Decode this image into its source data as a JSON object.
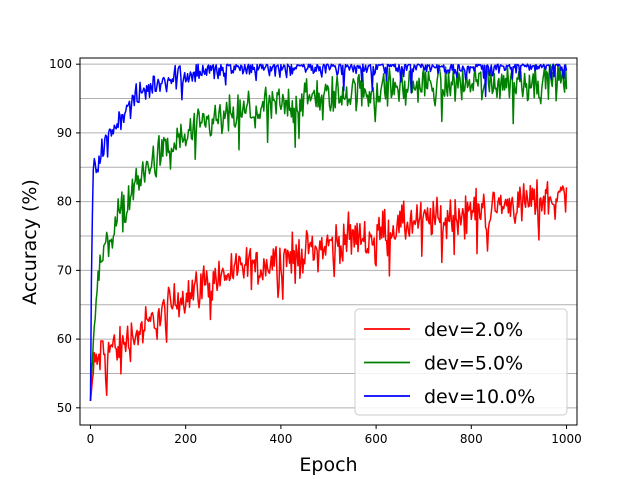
{
  "chart_data": {
    "type": "line",
    "title": "",
    "xlabel": "Epoch",
    "ylabel": "Accuracy (%)",
    "xlim": [
      -22,
      1022
    ],
    "ylim": [
      47.5,
      100.9
    ],
    "xticks": [
      0,
      200,
      400,
      600,
      800,
      1000
    ],
    "yticks": [
      50,
      60,
      70,
      80,
      90,
      100
    ],
    "ygrid": [
      50,
      55,
      60,
      65,
      70,
      75,
      80,
      85,
      90,
      95,
      100
    ],
    "grid": "horizontal",
    "legend_position": "lower-right",
    "series": [
      {
        "name": "dev=2.0%",
        "color": "#ff0000",
        "x": [
          0,
          5,
          10,
          20,
          30,
          50,
          75,
          100,
          125,
          150,
          175,
          200,
          250,
          300,
          350,
          400,
          450,
          500,
          550,
          600,
          650,
          700,
          750,
          800,
          850,
          900,
          950,
          1000
        ],
        "y": [
          51,
          54.5,
          56.5,
          57.5,
          58.3,
          58.9,
          59.8,
          60.9,
          62.2,
          63.6,
          65.3,
          66.6,
          68.4,
          69.9,
          70.7,
          71.7,
          72.6,
          73.7,
          74.7,
          75.5,
          76.4,
          77.2,
          77.9,
          78.7,
          79.2,
          79.7,
          80.3,
          80.8
        ],
        "noise": 1.5
      },
      {
        "name": "dev=5.0%",
        "color": "#008000",
        "x": [
          0,
          5,
          10,
          15,
          20,
          30,
          50,
          75,
          100,
          125,
          150,
          200,
          250,
          300,
          350,
          400,
          450,
          500,
          550,
          600,
          650,
          700,
          750,
          800,
          850,
          900,
          950,
          1000
        ],
        "y": [
          51,
          60,
          64.5,
          68,
          70.5,
          73,
          76.5,
          80,
          83,
          85.2,
          87,
          89.5,
          91.3,
          92.5,
          93.4,
          94.2,
          94.9,
          95.4,
          95.9,
          96.3,
          96.6,
          96.9,
          97.1,
          97.3,
          97.5,
          97.6,
          97.7,
          97.8
        ],
        "noise": 1.4
      },
      {
        "name": "dev=10.0%",
        "color": "#0000ff",
        "x": [
          0,
          3,
          6,
          10,
          15,
          20,
          30,
          50,
          75,
          100,
          125,
          150,
          200,
          250,
          300,
          350,
          400,
          450,
          500,
          600,
          700,
          800,
          900,
          1000
        ],
        "y": [
          51,
          77,
          84,
          85,
          85.5,
          86.5,
          88.5,
          90.8,
          93.3,
          95.2,
          96.6,
          97.6,
          98.6,
          99.1,
          99.4,
          99.55,
          99.65,
          99.7,
          99.75,
          99.8,
          99.83,
          99.86,
          99.88,
          99.9
        ],
        "noise": 0.9
      }
    ]
  }
}
